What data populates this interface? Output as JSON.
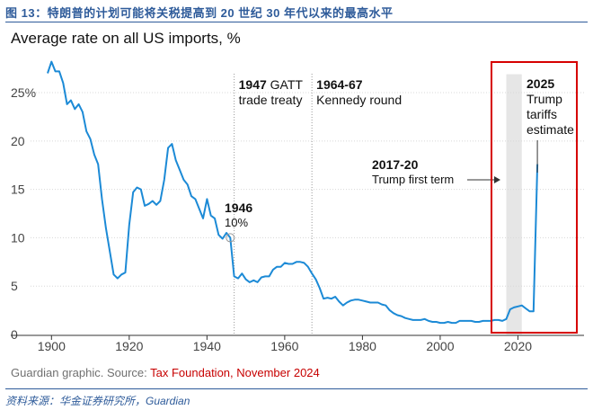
{
  "figure_caption": "图 13：特朗普的计划可能将关税提高到 20 世纪 30 年代以来的最高水平",
  "source": {
    "prefix": "Guardian graphic. Source: ",
    "highlight": "Tax Foundation, November 2024"
  },
  "footnote": "资料来源：华金证券研究所，Guardian",
  "colors": {
    "line": "#1c8ad6",
    "highlight_box": "#d60000",
    "band": "#e6e6e6",
    "axis": "#333333",
    "grid": "#d8d8d8",
    "caption": "#2e5b9a"
  },
  "chart_data": {
    "type": "line",
    "title": "Average rate on all US imports, %",
    "xlabel": "",
    "ylabel": "",
    "xlim": [
      1896,
      2037
    ],
    "ylim": [
      0,
      29
    ],
    "x_ticks": [
      "1900",
      "1920",
      "1940",
      "1960",
      "1980",
      "2000",
      "2020"
    ],
    "x_tick_values": [
      1900,
      1920,
      1940,
      1960,
      1980,
      2000,
      2020
    ],
    "y_ticks": [
      "0",
      "5",
      "10",
      "15",
      "20",
      "25%"
    ],
    "y_tick_values": [
      0,
      5,
      10,
      15,
      20,
      25
    ],
    "grid": "horizontal",
    "series": [
      {
        "x": [
          1899,
          1900,
          1901,
          1902,
          1903,
          1904,
          1905,
          1906,
          1907,
          1908,
          1909,
          1910,
          1911,
          1912,
          1913,
          1914,
          1915,
          1916,
          1917,
          1918,
          1919,
          1920,
          1921,
          1922,
          1923,
          1924,
          1925,
          1926,
          1927,
          1928,
          1929,
          1930,
          1931,
          1932,
          1933,
          1934,
          1935,
          1936,
          1937,
          1938,
          1939,
          1940,
          1941,
          1942,
          1943,
          1944,
          1945,
          1946,
          1947,
          1948,
          1949,
          1950,
          1951,
          1952,
          1953,
          1954,
          1955,
          1956,
          1957,
          1958,
          1959,
          1960,
          1961,
          1962,
          1963,
          1964,
          1965,
          1966,
          1967,
          1968,
          1969,
          1970,
          1971,
          1972,
          1973,
          1974,
          1975,
          1976,
          1977,
          1978,
          1979,
          1980,
          1981,
          1982,
          1983,
          1984,
          1985,
          1986,
          1987,
          1988,
          1989,
          1990,
          1991,
          1992,
          1993,
          1994,
          1995,
          1996,
          1997,
          1998,
          1999,
          2000,
          2001,
          2002,
          2003,
          2004,
          2005,
          2006,
          2007,
          2008,
          2009,
          2010,
          2011,
          2012,
          2013,
          2014,
          2015,
          2016,
          2017,
          2018,
          2019,
          2020,
          2021,
          2022,
          2023,
          2024,
          2025
        ],
        "values": [
          27.0,
          28.2,
          27.2,
          27.2,
          26.0,
          23.8,
          24.2,
          23.3,
          23.8,
          23.0,
          21.0,
          20.2,
          18.6,
          17.6,
          14.0,
          11.0,
          8.6,
          6.2,
          5.8,
          6.2,
          6.4,
          11.3,
          14.7,
          15.2,
          15.0,
          13.3,
          13.5,
          13.8,
          13.4,
          13.8,
          16.0,
          19.3,
          19.7,
          18.0,
          17.0,
          16.0,
          15.5,
          14.3,
          14.0,
          13.0,
          12.0,
          14.0,
          12.3,
          12.0,
          10.3,
          9.9,
          10.5,
          10.0,
          6.0,
          5.8,
          6.3,
          5.7,
          5.4,
          5.6,
          5.4,
          5.9,
          6.0,
          6.0,
          6.7,
          7.0,
          7.0,
          7.4,
          7.3,
          7.3,
          7.5,
          7.5,
          7.4,
          7.0,
          6.3,
          5.7,
          4.8,
          3.7,
          3.8,
          3.7,
          3.9,
          3.4,
          3.0,
          3.3,
          3.5,
          3.6,
          3.6,
          3.5,
          3.4,
          3.3,
          3.3,
          3.3,
          3.1,
          3.0,
          2.5,
          2.2,
          2.0,
          1.9,
          1.7,
          1.6,
          1.5,
          1.5,
          1.5,
          1.6,
          1.4,
          1.3,
          1.3,
          1.2,
          1.2,
          1.3,
          1.2,
          1.2,
          1.4,
          1.4,
          1.4,
          1.4,
          1.3,
          1.3,
          1.4,
          1.4,
          1.4,
          1.5,
          1.5,
          1.4,
          1.6,
          2.6,
          2.8,
          2.9,
          3.0,
          2.7,
          2.4,
          2.4,
          17.6
        ]
      }
    ],
    "annotations": [
      {
        "id": "gatt",
        "year": "1947",
        "text": "GATT",
        "line2": "trade treaty"
      },
      {
        "id": "kennedy",
        "year": "1964-67",
        "line2": "Kennedy round"
      },
      {
        "id": "y1946",
        "year": "1946",
        "line2": "10%"
      },
      {
        "id": "trump1",
        "year": "2017-20",
        "line2": "Trump first term"
      },
      {
        "id": "trump2",
        "year": "2025",
        "lines": [
          "Trump",
          "tariffs",
          "estimate"
        ]
      }
    ]
  }
}
